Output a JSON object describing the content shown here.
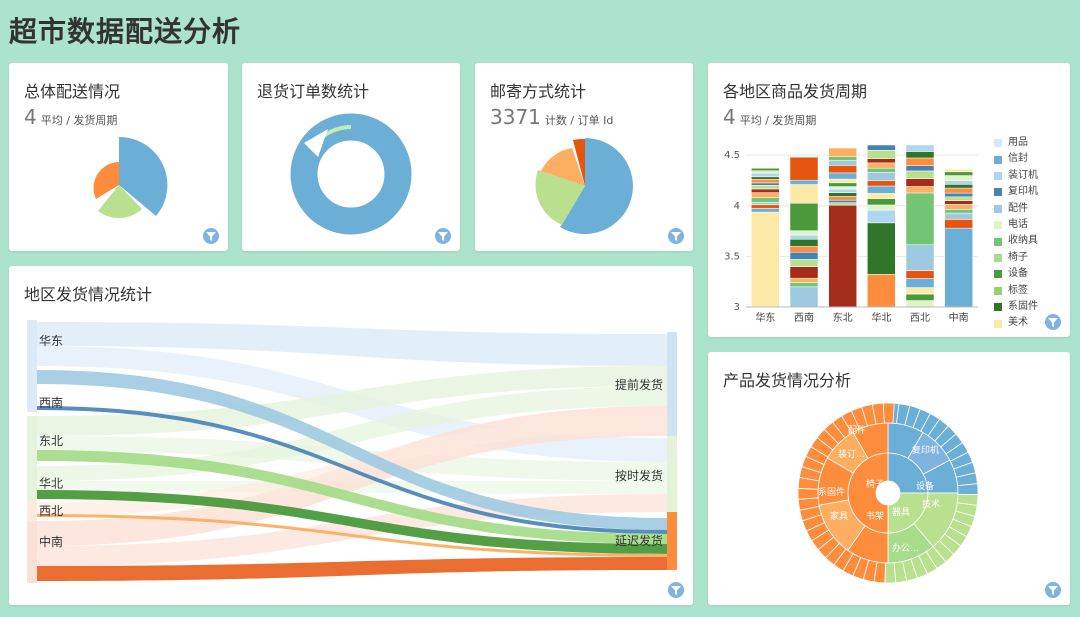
{
  "page_title": "超市数据配送分析",
  "cards": {
    "overall": {
      "title": "总体配送情况",
      "kpi_value": "4",
      "kpi_label": "平均 / 发货周期",
      "chart_data": {
        "type": "pie",
        "slices": [
          {
            "value": 0.37,
            "color": "#6baed6"
          },
          {
            "value": 0.22,
            "color": "#b9e08e"
          },
          {
            "value": 0.16,
            "color": "#fd8d3c"
          }
        ]
      }
    },
    "returns": {
      "title": "退货订单数统计",
      "chart_data": {
        "type": "pie",
        "donut": true,
        "slices": [
          {
            "value": 0.92,
            "color": "#6baed6"
          },
          {
            "value": 0.08,
            "color": "#c7e9b4"
          }
        ]
      }
    },
    "mail": {
      "title": "邮寄方式统计",
      "kpi_value": "3371",
      "kpi_label": "计数 / 订单 Id",
      "chart_data": {
        "type": "pie",
        "slices": [
          {
            "value": 0.57,
            "color": "#6baed6"
          },
          {
            "value": 0.21,
            "color": "#b9e08e"
          },
          {
            "value": 0.12,
            "color": "#fdae61"
          },
          {
            "value": 0.05,
            "color": "#e6550d"
          }
        ]
      }
    },
    "region_cycle": {
      "title": "各地区商品发货周期",
      "kpi_value": "4",
      "kpi_label": "平均 / 发货周期",
      "legend": [
        {
          "label": "用品",
          "color": "#d6e9f8"
        },
        {
          "label": "信封",
          "color": "#6baed6"
        },
        {
          "label": "装订机",
          "color": "#aed6f1"
        },
        {
          "label": "复印机",
          "color": "#4682b4"
        },
        {
          "label": "配件",
          "color": "#9ecae1"
        },
        {
          "label": "电话",
          "color": "#dff5c8"
        },
        {
          "label": "收纳具",
          "color": "#74c476"
        },
        {
          "label": "椅子",
          "color": "#a6dc8a"
        },
        {
          "label": "设备",
          "color": "#4a9a3c"
        },
        {
          "label": "标签",
          "color": "#9ad06c"
        },
        {
          "label": "系固件",
          "color": "#31752a"
        },
        {
          "label": "美术",
          "color": "#fde9a6"
        }
      ],
      "chart_data": {
        "type": "bar",
        "stacked": true,
        "categories": [
          "华东",
          "西南",
          "东北",
          "华北",
          "西北",
          "中南"
        ],
        "yticks": [
          "4.5",
          "4",
          "3.5",
          "3"
        ],
        "ylim": [
          3,
          4.6
        ],
        "totals": [
          4.37,
          4.48,
          4.57,
          4.6,
          4.6,
          4.36
        ]
      }
    },
    "region_ship": {
      "title": "地区发货情况统计",
      "chart_data": {
        "type": "sankey",
        "sources": [
          "华东",
          "西南",
          "东北",
          "华北",
          "西北",
          "中南"
        ],
        "targets": [
          "提前发货",
          "按时发货",
          "延迟发货"
        ]
      }
    },
    "product_ship": {
      "title": "产品发货情况分析",
      "chart_data": {
        "type": "sunburst",
        "inner_labels": [
          "办公...",
          "家具",
          "技术"
        ],
        "ring_labels": [
          "椅子",
          "书架",
          "器具",
          "装订...",
          "系固件",
          "配件",
          "设备",
          "复印机",
          "办公...",
          "家具",
          "技术"
        ]
      }
    }
  }
}
